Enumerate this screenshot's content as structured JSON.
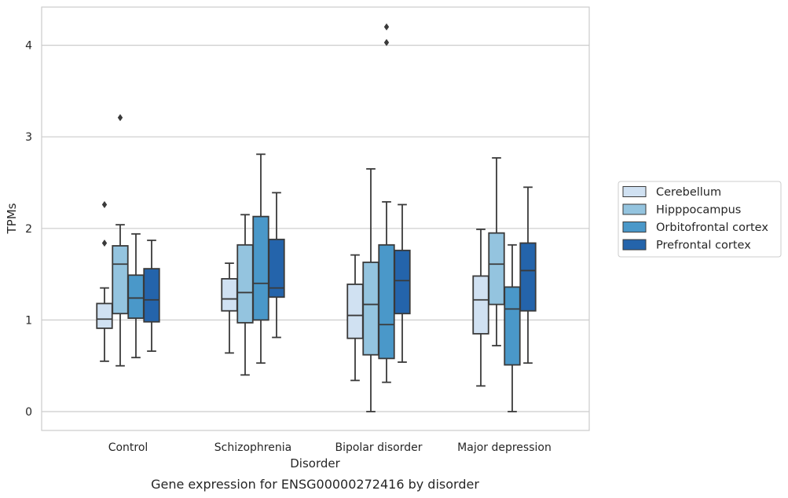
{
  "chart_data": {
    "type": "boxplot",
    "caption": "Gene expression for ENSG00000272416 by disorder",
    "xlabel": "Disorder",
    "ylabel": "TPMs",
    "ylim": [
      -0.2,
      4.3
    ],
    "yticks": [
      0,
      1,
      2,
      3,
      4
    ],
    "grid": true,
    "legend_position": "right",
    "categories": [
      "Control",
      "Schizophrenia",
      "Bipolar disorder",
      "Major depression"
    ],
    "series": [
      {
        "name": "Cerebellum",
        "color": "#d0e1f2",
        "boxes": [
          {
            "whislo": 0.55,
            "q1": 0.91,
            "med": 1.01,
            "q3": 1.18,
            "whishi": 1.35,
            "fliers": [
              1.84,
              2.26
            ]
          },
          {
            "whislo": 0.64,
            "q1": 1.1,
            "med": 1.23,
            "q3": 1.45,
            "whishi": 1.62,
            "fliers": []
          },
          {
            "whislo": 0.34,
            "q1": 0.8,
            "med": 1.05,
            "q3": 1.39,
            "whishi": 1.71,
            "fliers": []
          },
          {
            "whislo": 0.28,
            "q1": 0.85,
            "med": 1.22,
            "q3": 1.48,
            "whishi": 1.99,
            "fliers": []
          }
        ]
      },
      {
        "name": "Hipppocampus",
        "color": "#94c4df",
        "boxes": [
          {
            "whislo": 0.5,
            "q1": 1.07,
            "med": 1.61,
            "q3": 1.81,
            "whishi": 2.04,
            "fliers": [
              3.21
            ]
          },
          {
            "whislo": 0.4,
            "q1": 0.97,
            "med": 1.3,
            "q3": 1.82,
            "whishi": 2.15,
            "fliers": []
          },
          {
            "whislo": 0.0,
            "q1": 0.62,
            "med": 1.17,
            "q3": 1.63,
            "whishi": 2.65,
            "fliers": []
          },
          {
            "whislo": 0.72,
            "q1": 1.17,
            "med": 1.61,
            "q3": 1.95,
            "whishi": 2.77,
            "fliers": []
          }
        ]
      },
      {
        "name": "Orbitofrontal cortex",
        "color": "#4a98c9",
        "boxes": [
          {
            "whislo": 0.59,
            "q1": 1.02,
            "med": 1.24,
            "q3": 1.49,
            "whishi": 1.94,
            "fliers": []
          },
          {
            "whislo": 0.53,
            "q1": 1.0,
            "med": 1.4,
            "q3": 2.13,
            "whishi": 2.81,
            "fliers": []
          },
          {
            "whislo": 0.32,
            "q1": 0.58,
            "med": 0.95,
            "q3": 1.82,
            "whishi": 2.29,
            "fliers": [
              4.03,
              4.2
            ]
          },
          {
            "whislo": 0.0,
            "q1": 0.51,
            "med": 1.12,
            "q3": 1.36,
            "whishi": 1.82,
            "fliers": []
          }
        ]
      },
      {
        "name": "Prefrontal cortex",
        "color": "#2464ab",
        "boxes": [
          {
            "whislo": 0.66,
            "q1": 0.98,
            "med": 1.22,
            "q3": 1.56,
            "whishi": 1.87,
            "fliers": []
          },
          {
            "whislo": 0.81,
            "q1": 1.25,
            "med": 1.35,
            "q3": 1.88,
            "whishi": 2.39,
            "fliers": []
          },
          {
            "whislo": 0.54,
            "q1": 1.07,
            "med": 1.43,
            "q3": 1.76,
            "whishi": 2.26,
            "fliers": []
          },
          {
            "whislo": 0.53,
            "q1": 1.1,
            "med": 1.54,
            "q3": 1.84,
            "whishi": 2.45,
            "fliers": []
          }
        ]
      }
    ]
  }
}
